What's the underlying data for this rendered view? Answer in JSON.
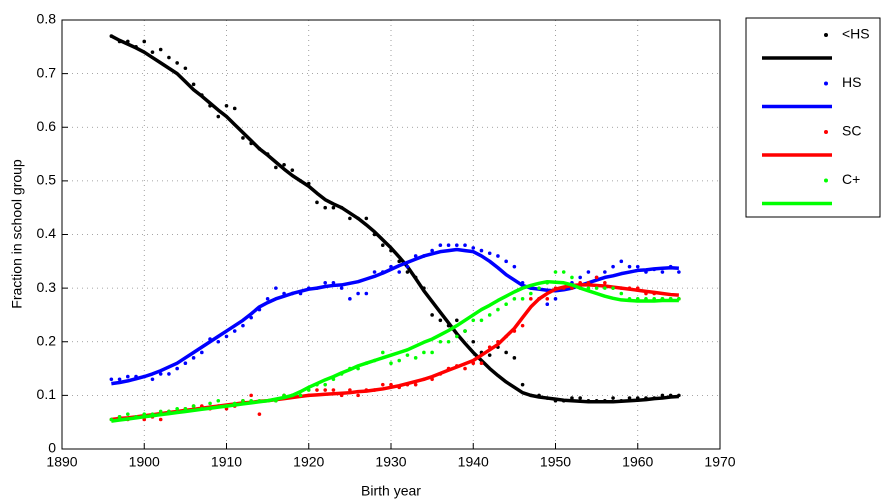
{
  "chart_data": {
    "type": "line",
    "xlabel": "Birth year",
    "ylabel": "Fraction in school group",
    "xlim": [
      1890,
      1970
    ],
    "xticks": [
      1890,
      1900,
      1910,
      1920,
      1930,
      1940,
      1950,
      1960,
      1970
    ],
    "ylim": [
      0,
      0.8
    ],
    "yticks": [
      0,
      0.1,
      0.2,
      0.3,
      0.4,
      0.5,
      0.6,
      0.7,
      0.8
    ],
    "grid": true,
    "legend": "outside-right",
    "x": [
      1896,
      1897,
      1898,
      1899,
      1900,
      1901,
      1902,
      1903,
      1904,
      1905,
      1906,
      1907,
      1908,
      1909,
      1910,
      1911,
      1912,
      1913,
      1914,
      1915,
      1916,
      1917,
      1918,
      1919,
      1920,
      1921,
      1922,
      1923,
      1924,
      1925,
      1926,
      1927,
      1928,
      1929,
      1930,
      1931,
      1932,
      1933,
      1934,
      1935,
      1936,
      1937,
      1938,
      1939,
      1940,
      1941,
      1942,
      1943,
      1944,
      1945,
      1946,
      1947,
      1948,
      1949,
      1950,
      1951,
      1952,
      1953,
      1954,
      1955,
      1956,
      1957,
      1958,
      1959,
      1960,
      1961,
      1962,
      1963,
      1964,
      1965
    ],
    "series": [
      {
        "name": "<HS",
        "color": "#000000",
        "values": [
          0.77,
          0.76,
          0.76,
          0.75,
          0.76,
          0.74,
          0.745,
          0.73,
          0.72,
          0.71,
          0.68,
          0.66,
          0.64,
          0.62,
          0.64,
          0.635,
          0.58,
          0.57,
          0.56,
          0.55,
          0.525,
          0.53,
          0.52,
          0.5,
          0.495,
          0.46,
          0.45,
          0.45,
          0.45,
          0.43,
          0.43,
          0.43,
          0.4,
          0.38,
          0.37,
          0.35,
          0.33,
          0.32,
          0.3,
          0.25,
          0.24,
          0.23,
          0.24,
          0.22,
          0.2,
          0.18,
          0.175,
          0.19,
          0.18,
          0.17,
          0.12,
          0.1,
          0.1,
          0.095,
          0.09,
          0.09,
          0.095,
          0.095,
          0.09,
          0.09,
          0.09,
          0.095,
          0.09,
          0.095,
          0.095,
          0.095,
          0.095,
          0.1,
          0.1,
          0.1
        ],
        "fit": [
          0.77,
          0.762,
          0.755,
          0.748,
          0.74,
          0.73,
          0.72,
          0.71,
          0.7,
          0.685,
          0.67,
          0.658,
          0.645,
          0.632,
          0.62,
          0.605,
          0.59,
          0.575,
          0.56,
          0.548,
          0.535,
          0.522,
          0.51,
          0.5,
          0.49,
          0.477,
          0.465,
          0.457,
          0.45,
          0.44,
          0.43,
          0.418,
          0.405,
          0.39,
          0.375,
          0.358,
          0.34,
          0.318,
          0.295,
          0.275,
          0.255,
          0.235,
          0.215,
          0.197,
          0.18,
          0.165,
          0.15,
          0.137,
          0.125,
          0.115,
          0.105,
          0.1,
          0.097,
          0.095,
          0.093,
          0.091,
          0.09,
          0.089,
          0.088,
          0.088,
          0.088,
          0.088,
          0.089,
          0.09,
          0.091,
          0.092,
          0.094,
          0.095,
          0.097,
          0.098
        ]
      },
      {
        "name": "HS",
        "color": "#0000ff",
        "values": [
          0.13,
          0.13,
          0.135,
          0.135,
          0.135,
          0.13,
          0.14,
          0.14,
          0.15,
          0.16,
          0.17,
          0.18,
          0.205,
          0.2,
          0.21,
          0.22,
          0.23,
          0.245,
          0.26,
          0.28,
          0.3,
          0.29,
          0.29,
          0.29,
          0.3,
          0.3,
          0.31,
          0.31,
          0.3,
          0.28,
          0.29,
          0.29,
          0.33,
          0.33,
          0.34,
          0.33,
          0.34,
          0.36,
          0.36,
          0.37,
          0.38,
          0.38,
          0.38,
          0.38,
          0.375,
          0.37,
          0.365,
          0.36,
          0.35,
          0.34,
          0.31,
          0.3,
          0.28,
          0.27,
          0.28,
          0.3,
          0.31,
          0.32,
          0.33,
          0.32,
          0.33,
          0.34,
          0.35,
          0.34,
          0.34,
          0.33,
          0.335,
          0.33,
          0.34,
          0.33
        ],
        "fit": [
          0.122,
          0.124,
          0.127,
          0.131,
          0.135,
          0.14,
          0.146,
          0.153,
          0.16,
          0.17,
          0.18,
          0.19,
          0.2,
          0.21,
          0.22,
          0.23,
          0.24,
          0.252,
          0.265,
          0.273,
          0.28,
          0.285,
          0.29,
          0.294,
          0.298,
          0.3,
          0.303,
          0.305,
          0.306,
          0.309,
          0.312,
          0.317,
          0.322,
          0.328,
          0.335,
          0.342,
          0.348,
          0.354,
          0.36,
          0.364,
          0.368,
          0.37,
          0.372,
          0.37,
          0.368,
          0.36,
          0.35,
          0.338,
          0.325,
          0.315,
          0.305,
          0.3,
          0.298,
          0.296,
          0.295,
          0.297,
          0.3,
          0.305,
          0.31,
          0.315,
          0.32,
          0.323,
          0.327,
          0.33,
          0.333,
          0.334,
          0.336,
          0.337,
          0.338,
          0.337
        ]
      },
      {
        "name": "SC",
        "color": "#ff0000",
        "values": [
          0.055,
          0.06,
          0.055,
          0.06,
          0.055,
          0.06,
          0.055,
          0.07,
          0.07,
          0.075,
          0.08,
          0.08,
          0.075,
          0.08,
          0.075,
          0.08,
          0.09,
          0.1,
          0.065,
          0.09,
          0.09,
          0.1,
          0.1,
          0.1,
          0.1,
          0.11,
          0.11,
          0.11,
          0.1,
          0.11,
          0.1,
          0.11,
          0.11,
          0.12,
          0.12,
          0.115,
          0.12,
          0.12,
          0.13,
          0.13,
          0.14,
          0.15,
          0.155,
          0.15,
          0.16,
          0.16,
          0.19,
          0.2,
          0.21,
          0.22,
          0.23,
          0.28,
          0.28,
          0.28,
          0.3,
          0.3,
          0.3,
          0.31,
          0.31,
          0.32,
          0.31,
          0.3,
          0.3,
          0.3,
          0.3,
          0.29,
          0.29,
          0.28,
          0.28,
          0.28
        ],
        "fit": [
          0.055,
          0.057,
          0.058,
          0.06,
          0.062,
          0.064,
          0.066,
          0.068,
          0.07,
          0.072,
          0.074,
          0.076,
          0.078,
          0.08,
          0.082,
          0.084,
          0.086,
          0.087,
          0.089,
          0.09,
          0.092,
          0.094,
          0.096,
          0.098,
          0.1,
          0.101,
          0.102,
          0.103,
          0.104,
          0.105,
          0.107,
          0.108,
          0.11,
          0.112,
          0.115,
          0.118,
          0.122,
          0.126,
          0.13,
          0.135,
          0.141,
          0.147,
          0.153,
          0.159,
          0.165,
          0.175,
          0.185,
          0.195,
          0.21,
          0.225,
          0.245,
          0.265,
          0.28,
          0.29,
          0.298,
          0.302,
          0.305,
          0.306,
          0.306,
          0.305,
          0.304,
          0.302,
          0.3,
          0.298,
          0.296,
          0.294,
          0.292,
          0.29,
          0.288,
          0.287
        ]
      },
      {
        "name": "C+",
        "color": "#00ff00",
        "values": [
          0.055,
          0.06,
          0.065,
          0.06,
          0.065,
          0.065,
          0.07,
          0.07,
          0.075,
          0.075,
          0.08,
          0.075,
          0.085,
          0.09,
          0.08,
          0.085,
          0.09,
          0.09,
          0.09,
          0.09,
          0.09,
          0.1,
          0.1,
          0.1,
          0.11,
          0.12,
          0.12,
          0.13,
          0.14,
          0.15,
          0.15,
          0.16,
          0.165,
          0.18,
          0.16,
          0.165,
          0.175,
          0.17,
          0.18,
          0.18,
          0.2,
          0.2,
          0.21,
          0.22,
          0.24,
          0.24,
          0.25,
          0.26,
          0.27,
          0.28,
          0.28,
          0.29,
          0.3,
          0.31,
          0.33,
          0.33,
          0.32,
          0.3,
          0.3,
          0.3,
          0.3,
          0.3,
          0.29,
          0.28,
          0.28,
          0.28,
          0.28,
          0.28,
          0.28,
          0.28
        ],
        "fit": [
          0.052,
          0.054,
          0.056,
          0.058,
          0.06,
          0.062,
          0.064,
          0.066,
          0.068,
          0.07,
          0.072,
          0.074,
          0.076,
          0.078,
          0.08,
          0.082,
          0.084,
          0.086,
          0.088,
          0.09,
          0.093,
          0.096,
          0.1,
          0.107,
          0.115,
          0.122,
          0.129,
          0.135,
          0.142,
          0.148,
          0.155,
          0.16,
          0.165,
          0.17,
          0.175,
          0.18,
          0.185,
          0.192,
          0.199,
          0.205,
          0.213,
          0.221,
          0.23,
          0.24,
          0.25,
          0.26,
          0.268,
          0.277,
          0.285,
          0.293,
          0.3,
          0.305,
          0.309,
          0.312,
          0.311,
          0.31,
          0.306,
          0.3,
          0.295,
          0.29,
          0.285,
          0.281,
          0.278,
          0.277,
          0.276,
          0.276,
          0.276,
          0.277,
          0.277,
          0.277
        ]
      }
    ]
  }
}
